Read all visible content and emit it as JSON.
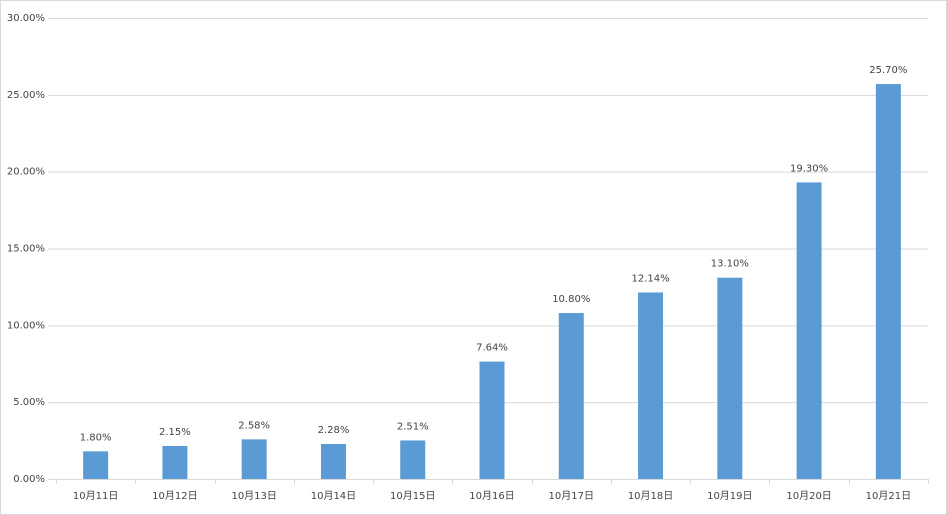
{
  "chart_data": {
    "type": "bar",
    "categories": [
      "10月11日",
      "10月12日",
      "10月13日",
      "10月14日",
      "10月15日",
      "10月16日",
      "10月17日",
      "10月18日",
      "10月19日",
      "10月20日",
      "10月21日"
    ],
    "values": [
      1.8,
      2.15,
      2.58,
      2.28,
      2.51,
      7.64,
      10.8,
      12.14,
      13.1,
      19.3,
      25.7
    ],
    "value_labels": [
      "1.80%",
      "2.15%",
      "2.58%",
      "2.28%",
      "2.51%",
      "7.64%",
      "10.80%",
      "12.14%",
      "13.10%",
      "19.30%",
      "25.70%"
    ],
    "color": "#5b9bd5",
    "ylim": [
      0,
      30
    ],
    "yticks": [
      {
        "value": 0,
        "label": "0.00%"
      },
      {
        "value": 5,
        "label": "5.00%"
      },
      {
        "value": 10,
        "label": "10.00%"
      },
      {
        "value": 15,
        "label": "15.00%"
      },
      {
        "value": 20,
        "label": "20.00%"
      },
      {
        "value": 25,
        "label": "25.00%"
      },
      {
        "value": 30,
        "label": "30.00%"
      }
    ],
    "grid": true
  }
}
